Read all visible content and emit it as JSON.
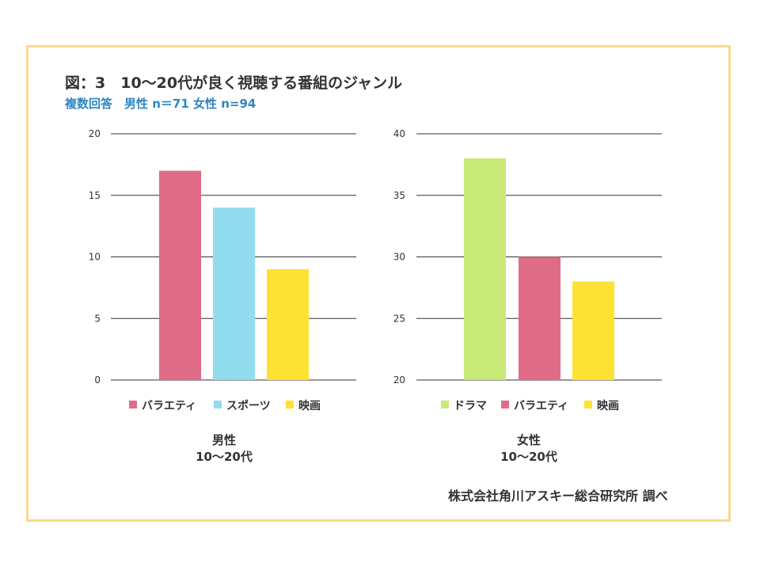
{
  "title": "図：3　10～20代が良く視聴する番組のジャンル",
  "subtitle": "複数回答　男性 n＝71  女性 n=94",
  "credit": "株式会社角川アスキー総合研究所 調べ",
  "colors": {
    "variety": "#e06b86",
    "sports": "#92dcef",
    "movie": "#fde234",
    "drama": "#c8e977",
    "grid": "#333333",
    "frame": "#fad88e"
  },
  "chart_data": [
    {
      "type": "bar",
      "caption_line1": "男性",
      "caption_line2": "10～20代",
      "ylim": [
        0,
        20
      ],
      "yticks": [
        "0",
        "5",
        "10",
        "15",
        "20"
      ],
      "series": [
        {
          "name": "バラエティ",
          "value": 17,
          "color": "#e06b86"
        },
        {
          "name": "スポーツ",
          "value": 14,
          "color": "#92dcef"
        },
        {
          "name": "映画",
          "value": 9,
          "color": "#fde234"
        }
      ]
    },
    {
      "type": "bar",
      "caption_line1": "女性",
      "caption_line2": "10～20代",
      "ylim": [
        20,
        40
      ],
      "yticks": [
        "20",
        "25",
        "30",
        "35",
        "40"
      ],
      "series": [
        {
          "name": "ドラマ",
          "value": 38,
          "color": "#c8e977"
        },
        {
          "name": "バラエティ",
          "value": 30,
          "color": "#e06b86"
        },
        {
          "name": "映画",
          "value": 28,
          "color": "#fde234"
        }
      ]
    }
  ]
}
